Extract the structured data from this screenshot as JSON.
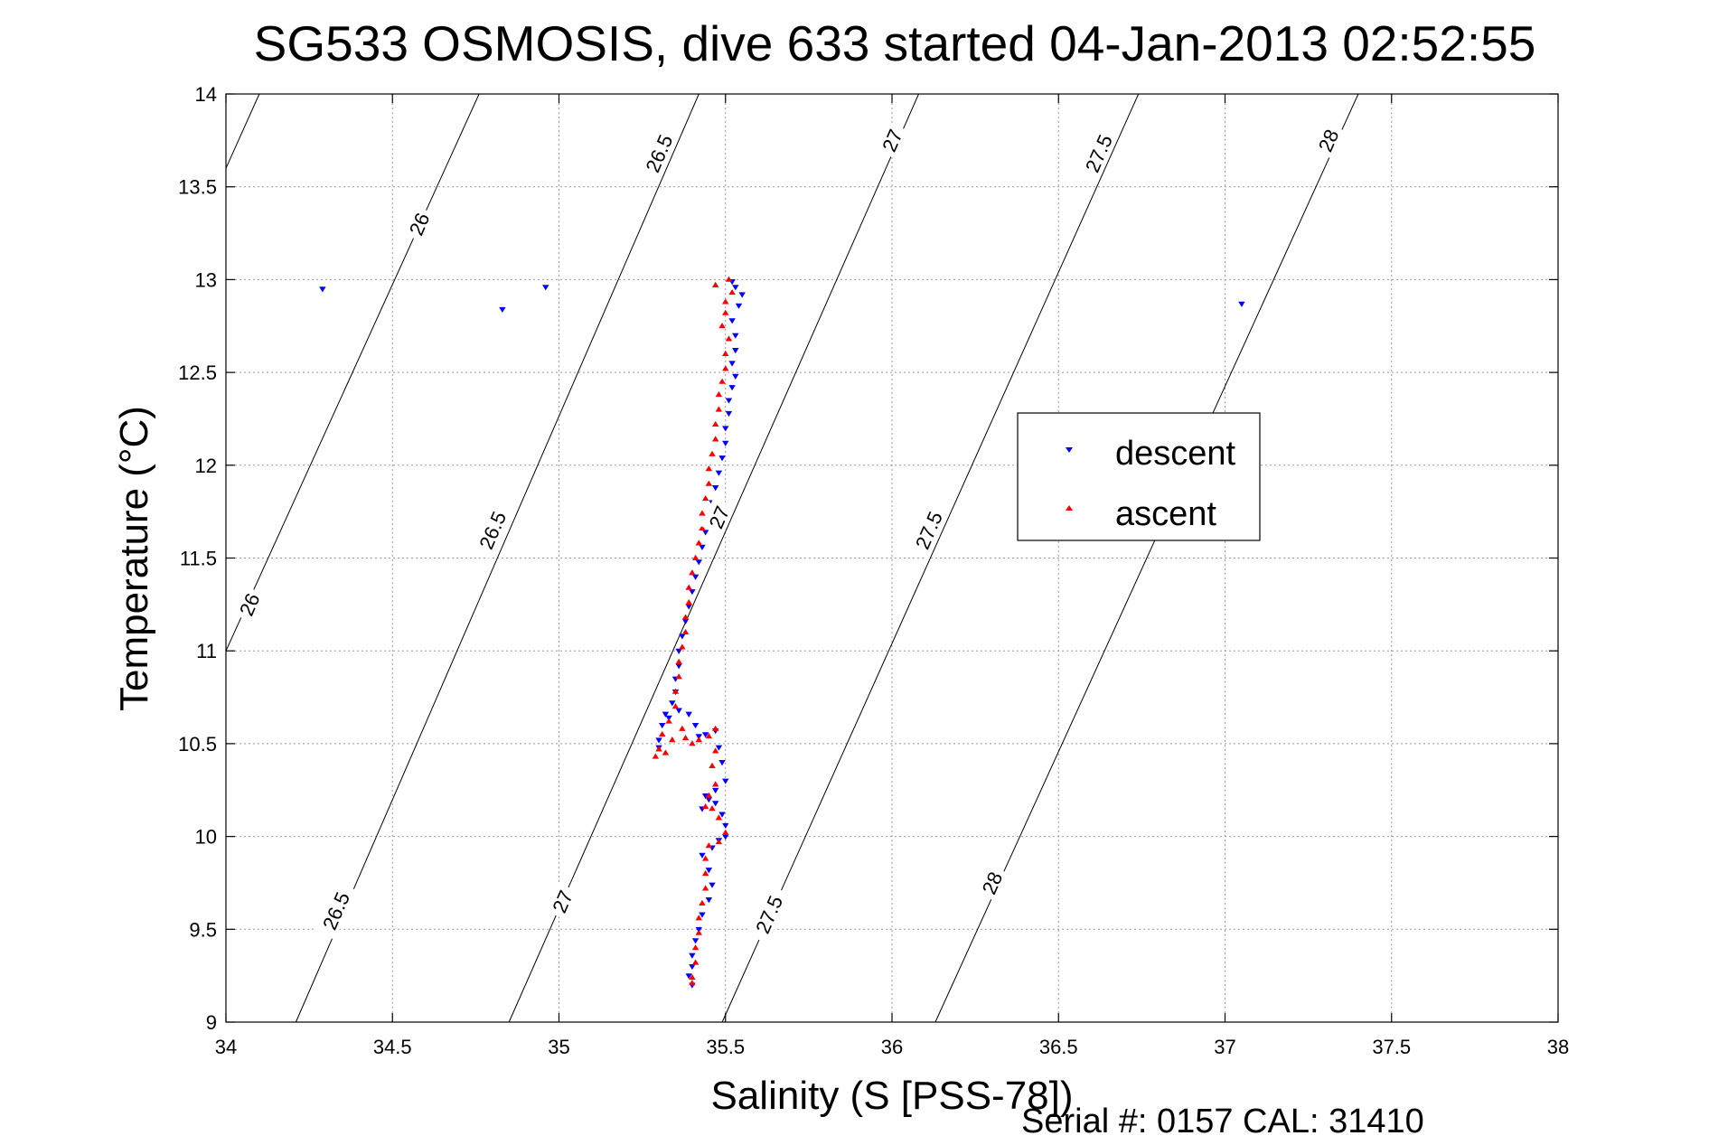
{
  "chart_data": {
    "type": "scatter",
    "title": "SG533 OSMOSIS, dive 633 started 04-Jan-2013 02:52:55",
    "xlabel": "Salinity (S [PSS-78])",
    "ylabel": "Temperature (°C)",
    "xlim": [
      34,
      38
    ],
    "ylim": [
      9,
      14
    ],
    "x_ticks": [
      34,
      34.5,
      35,
      35.5,
      36,
      36.5,
      37,
      37.5,
      38
    ],
    "y_ticks": [
      9,
      9.5,
      10,
      10.5,
      11,
      11.5,
      12,
      12.5,
      13,
      13.5,
      14
    ],
    "x_tick_labels": [
      "34",
      "34.5",
      "35",
      "35.5",
      "36",
      "36.5",
      "37",
      "37.5",
      "38"
    ],
    "y_tick_labels": [
      "9",
      "9.5",
      "10",
      "10.5",
      "11",
      "11.5",
      "12",
      "12.5",
      "13",
      "13.5",
      "14"
    ],
    "grid": true,
    "legend_position": "right-center",
    "footer": "Serial #: 0157  CAL: 31410",
    "density_contours": [
      {
        "label": "26",
        "points": [
          [
            34.1,
            14.0
          ],
          [
            34.0,
            13.6
          ]
        ]
      },
      {
        "label": "26",
        "points": [
          [
            34.76,
            14.0
          ],
          [
            34.0,
            11.0
          ]
        ]
      },
      {
        "label": "26.5",
        "points": [
          [
            35.42,
            14.0
          ],
          [
            34.21,
            9.0
          ]
        ]
      },
      {
        "label": "27",
        "points": [
          [
            36.08,
            14.0
          ],
          [
            34.85,
            9.0
          ]
        ]
      },
      {
        "label": "27.5",
        "points": [
          [
            36.74,
            14.0
          ],
          [
            35.49,
            9.0
          ]
        ]
      },
      {
        "label": "28",
        "points": [
          [
            37.4,
            14.0
          ],
          [
            36.13,
            9.0
          ]
        ]
      }
    ],
    "contour_labels": [
      {
        "text": "26",
        "x": 34.58,
        "y": 13.3
      },
      {
        "text": "26",
        "x": 34.07,
        "y": 11.25
      },
      {
        "text": "26.5",
        "x": 35.3,
        "y": 13.68
      },
      {
        "text": "26.5",
        "x": 34.8,
        "y": 11.65
      },
      {
        "text": "26.5",
        "x": 34.33,
        "y": 9.6
      },
      {
        "text": "27",
        "x": 36.0,
        "y": 13.75
      },
      {
        "text": "27",
        "x": 35.48,
        "y": 11.72
      },
      {
        "text": "27",
        "x": 35.01,
        "y": 9.65
      },
      {
        "text": "27.5",
        "x": 36.62,
        "y": 13.68
      },
      {
        "text": "27.5",
        "x": 36.11,
        "y": 11.65
      },
      {
        "text": "27.5",
        "x": 35.63,
        "y": 9.58
      },
      {
        "text": "28",
        "x": 37.31,
        "y": 13.75
      },
      {
        "text": "28",
        "x": 36.3,
        "y": 9.75
      }
    ],
    "series": [
      {
        "name": "descent",
        "color": "#0000ff",
        "marker": "triangle-down",
        "points": [
          [
            34.29,
            12.95
          ],
          [
            34.83,
            12.84
          ],
          [
            34.96,
            12.96
          ],
          [
            37.05,
            12.87
          ],
          [
            35.52,
            12.99
          ],
          [
            35.53,
            12.96
          ],
          [
            35.55,
            12.92
          ],
          [
            35.54,
            12.86
          ],
          [
            35.52,
            12.78
          ],
          [
            35.53,
            12.7
          ],
          [
            35.53,
            12.62
          ],
          [
            35.52,
            12.55
          ],
          [
            35.53,
            12.48
          ],
          [
            35.52,
            12.42
          ],
          [
            35.51,
            12.35
          ],
          [
            35.51,
            12.28
          ],
          [
            35.5,
            12.2
          ],
          [
            35.5,
            12.12
          ],
          [
            35.49,
            12.04
          ],
          [
            35.48,
            11.96
          ],
          [
            35.47,
            11.88
          ],
          [
            35.46,
            11.8
          ],
          [
            35.45,
            11.72
          ],
          [
            35.44,
            11.64
          ],
          [
            35.43,
            11.56
          ],
          [
            35.42,
            11.48
          ],
          [
            35.41,
            11.4
          ],
          [
            35.4,
            11.32
          ],
          [
            35.39,
            11.24
          ],
          [
            35.38,
            11.16
          ],
          [
            35.37,
            11.08
          ],
          [
            35.36,
            11.0
          ],
          [
            35.36,
            10.92
          ],
          [
            35.35,
            10.85
          ],
          [
            35.35,
            10.78
          ],
          [
            35.34,
            10.72
          ],
          [
            35.32,
            10.66
          ],
          [
            35.31,
            10.6
          ],
          [
            35.3,
            10.52
          ],
          [
            35.3,
            10.48
          ],
          [
            35.33,
            10.64
          ],
          [
            35.36,
            10.68
          ],
          [
            35.39,
            10.66
          ],
          [
            35.41,
            10.6
          ],
          [
            35.42,
            10.54
          ],
          [
            35.44,
            10.55
          ],
          [
            35.47,
            10.57
          ],
          [
            35.48,
            10.48
          ],
          [
            35.49,
            10.4
          ],
          [
            35.5,
            10.3
          ],
          [
            35.47,
            10.25
          ],
          [
            35.45,
            10.2
          ],
          [
            35.43,
            10.15
          ],
          [
            35.44,
            10.22
          ],
          [
            35.47,
            10.18
          ],
          [
            35.49,
            10.12
          ],
          [
            35.5,
            10.06
          ],
          [
            35.5,
            10.0
          ],
          [
            35.48,
            9.98
          ],
          [
            35.46,
            9.94
          ],
          [
            35.43,
            9.9
          ],
          [
            35.45,
            9.82
          ],
          [
            35.46,
            9.74
          ],
          [
            35.45,
            9.66
          ],
          [
            35.43,
            9.58
          ],
          [
            35.42,
            9.5
          ],
          [
            35.41,
            9.44
          ],
          [
            35.4,
            9.36
          ],
          [
            35.4,
            9.3
          ],
          [
            35.39,
            9.25
          ],
          [
            35.4,
            9.2
          ]
        ]
      },
      {
        "name": "ascent",
        "color": "#ff0000",
        "marker": "triangle-up",
        "points": [
          [
            35.47,
            12.97
          ],
          [
            35.51,
            13.0
          ],
          [
            35.52,
            12.93
          ],
          [
            35.5,
            12.88
          ],
          [
            35.5,
            12.82
          ],
          [
            35.49,
            12.75
          ],
          [
            35.51,
            12.68
          ],
          [
            35.5,
            12.6
          ],
          [
            35.5,
            12.52
          ],
          [
            35.49,
            12.45
          ],
          [
            35.48,
            12.38
          ],
          [
            35.48,
            12.3
          ],
          [
            35.47,
            12.22
          ],
          [
            35.47,
            12.14
          ],
          [
            35.46,
            12.06
          ],
          [
            35.45,
            11.98
          ],
          [
            35.45,
            11.9
          ],
          [
            35.44,
            11.82
          ],
          [
            35.43,
            11.74
          ],
          [
            35.43,
            11.66
          ],
          [
            35.42,
            11.58
          ],
          [
            35.41,
            11.5
          ],
          [
            35.4,
            11.42
          ],
          [
            35.39,
            11.34
          ],
          [
            35.39,
            11.26
          ],
          [
            35.38,
            11.18
          ],
          [
            35.38,
            11.1
          ],
          [
            35.37,
            11.02
          ],
          [
            35.36,
            10.94
          ],
          [
            35.36,
            10.86
          ],
          [
            35.35,
            10.78
          ],
          [
            35.35,
            10.7
          ],
          [
            35.33,
            10.62
          ],
          [
            35.31,
            10.55
          ],
          [
            35.3,
            10.47
          ],
          [
            35.29,
            10.43
          ],
          [
            35.32,
            10.45
          ],
          [
            35.34,
            10.52
          ],
          [
            35.37,
            10.58
          ],
          [
            35.38,
            10.53
          ],
          [
            35.4,
            10.5
          ],
          [
            35.42,
            10.52
          ],
          [
            35.45,
            10.54
          ],
          [
            35.47,
            10.58
          ],
          [
            35.47,
            10.46
          ],
          [
            35.46,
            10.38
          ],
          [
            35.47,
            10.28
          ],
          [
            35.45,
            10.22
          ],
          [
            35.44,
            10.16
          ],
          [
            35.46,
            10.15
          ],
          [
            35.48,
            10.1
          ],
          [
            35.5,
            10.02
          ],
          [
            35.48,
            9.97
          ],
          [
            35.45,
            9.95
          ],
          [
            35.44,
            9.88
          ],
          [
            35.44,
            9.8
          ],
          [
            35.44,
            9.72
          ],
          [
            35.43,
            9.64
          ],
          [
            35.42,
            9.56
          ],
          [
            35.42,
            9.48
          ],
          [
            35.41,
            9.4
          ],
          [
            35.41,
            9.32
          ],
          [
            35.4,
            9.24
          ],
          [
            35.4,
            9.21
          ]
        ]
      }
    ]
  }
}
